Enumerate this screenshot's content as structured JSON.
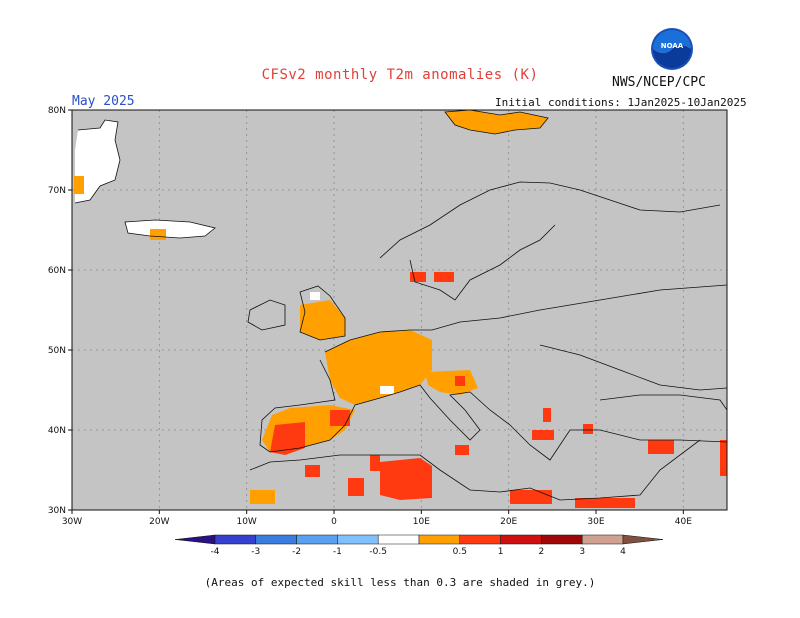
{
  "header": {
    "title": "CFSv2 monthly T2m anomalies (K)",
    "agency": "NWS/NCEP/CPC",
    "month_label": "May 2025",
    "init_conditions": "Initial conditions: 1Jan2025-10Jan2025"
  },
  "logo": {
    "text": "NOAA",
    "icon": "noaa-logo-icon"
  },
  "map": {
    "type": "heatmap",
    "region": "Europe",
    "lon_range": [
      -30,
      45
    ],
    "lat_range": [
      30,
      80
    ],
    "grid": true,
    "lon_ticks": [
      "30W",
      "20W",
      "10W",
      "0",
      "10E",
      "20E",
      "30E",
      "40E"
    ],
    "lat_ticks": [
      "80N",
      "70N",
      "60N",
      "50N",
      "40N",
      "30N"
    ],
    "background_color": "#c4c4c4",
    "anomaly_regions": [
      {
        "name": "Greenland coast",
        "level": "0.5 to 1",
        "lon": [
          -30,
          -28
        ],
        "lat": [
          69,
          72
        ]
      },
      {
        "name": "Svalbard",
        "level": "0.5 to 1",
        "lon": [
          12,
          27
        ],
        "lat": [
          77,
          80
        ]
      },
      {
        "name": "Iceland south",
        "level": "0.5 to 1",
        "lon": [
          -20,
          -19
        ],
        "lat": [
          63,
          65
        ]
      },
      {
        "name": "Southern Norway",
        "level": "1 to 2",
        "lon": [
          9,
          15
        ],
        "lat": [
          58,
          60
        ]
      },
      {
        "name": "England",
        "level": "0.5 to 1",
        "lon": [
          -3,
          2
        ],
        "lat": [
          51,
          54
        ]
      },
      {
        "name": "France",
        "level": "0.5 to 1",
        "lon": [
          -1,
          9
        ],
        "lat": [
          42,
          50
        ]
      },
      {
        "name": "Northern Italy",
        "level": "0.5 to 1",
        "lon": [
          8,
          16
        ],
        "lat": [
          43,
          47
        ]
      },
      {
        "name": "Spain",
        "level": "0.5 to 1",
        "lon": [
          -7,
          2
        ],
        "lat": [
          37,
          43
        ]
      },
      {
        "name": "Southern Spain",
        "level": "1 to 2",
        "lon": [
          -8,
          0
        ],
        "lat": [
          36,
          41
        ]
      },
      {
        "name": "Tunisia",
        "level": "1 to 2",
        "lon": [
          6,
          12
        ],
        "lat": [
          31,
          34
        ]
      },
      {
        "name": "Libya coast",
        "level": "1 to 2",
        "lon": [
          20,
          27
        ],
        "lat": [
          30,
          32
        ]
      },
      {
        "name": "Eastern Turkey",
        "level": "1 to 2",
        "lon": [
          37,
          45
        ],
        "lat": [
          37,
          39
        ]
      }
    ]
  },
  "colorbar": {
    "labels": [
      "-4",
      "-3",
      "-2",
      "-1",
      "-0.5",
      "0.5",
      "1",
      "2",
      "3",
      "4"
    ],
    "colors": [
      "#2a1080",
      "#3640d0",
      "#3a7de0",
      "#5aa0f0",
      "#80c0ff",
      "#ffffff",
      "#ffa000",
      "#ff3a10",
      "#d01010",
      "#a00808",
      "#d0a090",
      "#805040"
    ]
  },
  "footnote": "(Areas of expected skill less than 0.3 are shaded in grey.)"
}
